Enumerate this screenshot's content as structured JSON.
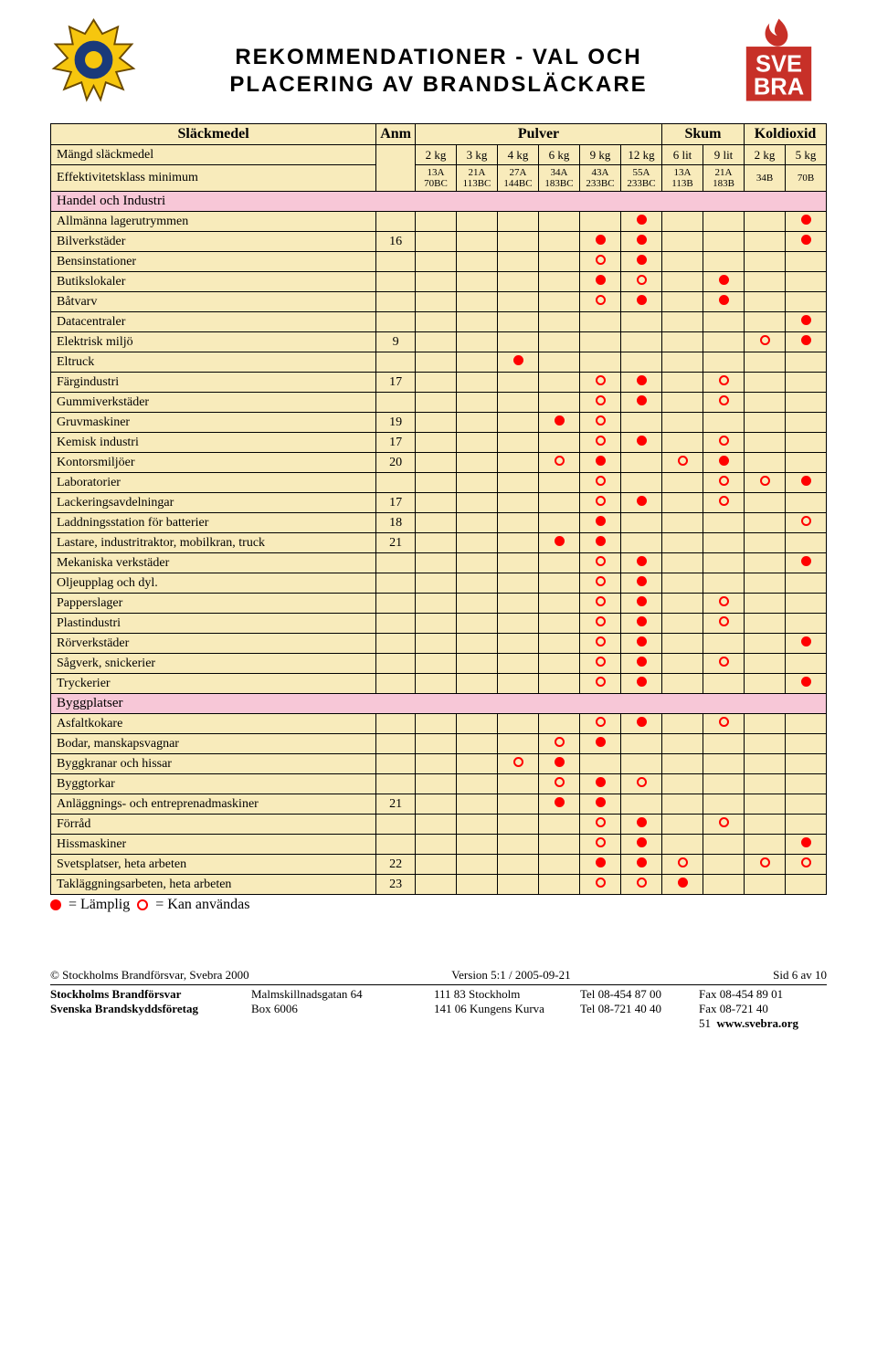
{
  "title_line1": "REKOMMENDATIONER - VAL OCH",
  "title_line2": "PLACERING AV BRANDSLÄCKARE",
  "table_head": {
    "slackmedel": "Släckmedel",
    "anm": "Anm",
    "pulver": "Pulver",
    "skum": "Skum",
    "koldioxid": "Koldioxid"
  },
  "weights": {
    "label": "Mängd släckmedel",
    "cells": [
      "2 kg",
      "3 kg",
      "4 kg",
      "6 kg",
      "9 kg",
      "12 kg",
      "6 lit",
      "9 lit",
      "2 kg",
      "5 kg"
    ]
  },
  "eff": {
    "label": "Effektivitetsklass minimum",
    "cells": [
      "13A\n70BC",
      "21A\n113BC",
      "27A\n144BC",
      "34A\n183BC",
      "43A\n233BC",
      "55A\n233BC",
      "13A\n113B",
      "21A\n183B",
      "34B",
      "70B"
    ]
  },
  "sections": [
    {
      "title": "Handel och Industri",
      "rows": [
        {
          "label": "Allmänna lagerutrymmen",
          "anm": "",
          "marks": [
            "",
            "",
            "",
            "",
            "",
            "F",
            "",
            "",
            "",
            "F"
          ]
        },
        {
          "label": "Bilverkstäder",
          "anm": "16",
          "marks": [
            "",
            "",
            "",
            "",
            "F",
            "F",
            "",
            "",
            "",
            "F"
          ]
        },
        {
          "label": "Bensinstationer",
          "anm": "",
          "marks": [
            "",
            "",
            "",
            "",
            "O",
            "F",
            "",
            "",
            "",
            ""
          ]
        },
        {
          "label": "Butikslokaler",
          "anm": "",
          "marks": [
            "",
            "",
            "",
            "",
            "F",
            "O",
            "",
            "F",
            "",
            ""
          ]
        },
        {
          "label": "Båtvarv",
          "anm": "",
          "marks": [
            "",
            "",
            "",
            "",
            "O",
            "F",
            "",
            "F",
            "",
            ""
          ]
        },
        {
          "label": "Datacentraler",
          "anm": "",
          "marks": [
            "",
            "",
            "",
            "",
            "",
            "",
            "",
            "",
            "",
            "F"
          ]
        },
        {
          "label": "Elektrisk miljö",
          "anm": "9",
          "marks": [
            "",
            "",
            "",
            "",
            "",
            "",
            "",
            "",
            "O",
            "F"
          ]
        },
        {
          "label": "Eltruck",
          "anm": "",
          "marks": [
            "",
            "",
            "F",
            "",
            "",
            "",
            "",
            "",
            "",
            ""
          ]
        },
        {
          "label": "Färgindustri",
          "anm": "17",
          "marks": [
            "",
            "",
            "",
            "",
            "O",
            "F",
            "",
            "O",
            "",
            ""
          ]
        },
        {
          "label": "Gummiverkstäder",
          "anm": "",
          "marks": [
            "",
            "",
            "",
            "",
            "O",
            "F",
            "",
            "O",
            "",
            ""
          ]
        },
        {
          "label": "Gruvmaskiner",
          "anm": "19",
          "marks": [
            "",
            "",
            "",
            "F",
            "O",
            "",
            "",
            "",
            "",
            ""
          ]
        },
        {
          "label": "Kemisk industri",
          "anm": "17",
          "marks": [
            "",
            "",
            "",
            "",
            "O",
            "F",
            "",
            "O",
            "",
            ""
          ]
        },
        {
          "label": "Kontorsmiljöer",
          "anm": "20",
          "marks": [
            "",
            "",
            "",
            "O",
            "F",
            "",
            "O",
            "F",
            "",
            ""
          ]
        },
        {
          "label": "Laboratorier",
          "anm": "",
          "marks": [
            "",
            "",
            "",
            "",
            "O",
            "",
            "",
            "O",
            "O",
            "F"
          ]
        },
        {
          "label": "Lackeringsavdelningar",
          "anm": "17",
          "marks": [
            "",
            "",
            "",
            "",
            "O",
            "F",
            "",
            "O",
            "",
            ""
          ]
        },
        {
          "label": "Laddningsstation för batterier",
          "anm": "18",
          "marks": [
            "",
            "",
            "",
            "",
            "F",
            "",
            "",
            "",
            "",
            "O"
          ]
        },
        {
          "label": "Lastare, industritraktor, mobilkran, truck",
          "anm": "21",
          "marks": [
            "",
            "",
            "",
            "F",
            "F",
            "",
            "",
            "",
            "",
            ""
          ]
        },
        {
          "label": "Mekaniska verkstäder",
          "anm": "",
          "marks": [
            "",
            "",
            "",
            "",
            "O",
            "F",
            "",
            "",
            "",
            "F"
          ]
        },
        {
          "label": "Oljeupplag och dyl.",
          "anm": "",
          "marks": [
            "",
            "",
            "",
            "",
            "O",
            "F",
            "",
            "",
            "",
            ""
          ]
        },
        {
          "label": "Papperslager",
          "anm": "",
          "marks": [
            "",
            "",
            "",
            "",
            "O",
            "F",
            "",
            "O",
            "",
            ""
          ]
        },
        {
          "label": "Plastindustri",
          "anm": "",
          "marks": [
            "",
            "",
            "",
            "",
            "O",
            "F",
            "",
            "O",
            "",
            ""
          ]
        },
        {
          "label": "Rörverkstäder",
          "anm": "",
          "marks": [
            "",
            "",
            "",
            "",
            "O",
            "F",
            "",
            "",
            "",
            "F"
          ]
        },
        {
          "label": "Sågverk, snickerier",
          "anm": "",
          "marks": [
            "",
            "",
            "",
            "",
            "O",
            "F",
            "",
            "O",
            "",
            ""
          ]
        },
        {
          "label": "Tryckerier",
          "anm": "",
          "marks": [
            "",
            "",
            "",
            "",
            "O",
            "F",
            "",
            "",
            "",
            "F"
          ]
        }
      ]
    },
    {
      "title": "Byggplatser",
      "rows": [
        {
          "label": "Asfaltkokare",
          "anm": "",
          "marks": [
            "",
            "",
            "",
            "",
            "O",
            "F",
            "",
            "O",
            "",
            ""
          ]
        },
        {
          "label": "Bodar, manskapsvagnar",
          "anm": "",
          "marks": [
            "",
            "",
            "",
            "O",
            "F",
            "",
            "",
            "",
            "",
            ""
          ]
        },
        {
          "label": "Byggkranar och hissar",
          "anm": "",
          "marks": [
            "",
            "",
            "O",
            "F",
            "",
            "",
            "",
            "",
            "",
            ""
          ]
        },
        {
          "label": "Byggtorkar",
          "anm": "",
          "marks": [
            "",
            "",
            "",
            "O",
            "F",
            "O",
            "",
            "",
            "",
            ""
          ]
        },
        {
          "label": "Anläggnings- och entreprenadmaskiner",
          "anm": "21",
          "marks": [
            "",
            "",
            "",
            "F",
            "F",
            "",
            "",
            "",
            "",
            ""
          ]
        },
        {
          "label": "Förråd",
          "anm": "",
          "marks": [
            "",
            "",
            "",
            "",
            "O",
            "F",
            "",
            "O",
            "",
            ""
          ]
        },
        {
          "label": "Hissmaskiner",
          "anm": "",
          "marks": [
            "",
            "",
            "",
            "",
            "O",
            "F",
            "",
            "",
            "",
            "F"
          ]
        },
        {
          "label": "Svetsplatser, heta arbeten",
          "anm": "22",
          "marks": [
            "",
            "",
            "",
            "",
            "F",
            "F",
            "O",
            "",
            "O",
            "O"
          ]
        },
        {
          "label": "Takläggningsarbeten, heta arbeten",
          "anm": "23",
          "marks": [
            "",
            "",
            "",
            "",
            "O",
            "O",
            "F",
            "",
            "",
            ""
          ]
        }
      ]
    }
  ],
  "legend": {
    "filled": "= Lämplig   ",
    "open": "= Kan användas"
  },
  "footer": {
    "copyright": "© Stockholms Brandförsvar, Svebra 2000",
    "version": "Version 5:1 / 2005-09-21",
    "page": "Sid 6 av 10",
    "rows": [
      [
        "Stockholms Brandförsvar",
        "Malmskillnadsgatan 64",
        "111 83 Stockholm",
        "Tel 08-454 87 00",
        "Fax 08-454 89 01"
      ],
      [
        "Svenska Brandskyddsföretag",
        "Box 6006",
        "141 06 Kungens Kurva",
        "Tel 08-721 40 40",
        "Fax 08-721 40 51"
      ]
    ],
    "url": "www.svebra.org"
  },
  "colors": {
    "header_bg": "#f8ebbb",
    "data_bg": "#f8ebbb",
    "section_bg": "#f7c7d7",
    "mark_color": "#ff0000",
    "border": "#000000"
  }
}
